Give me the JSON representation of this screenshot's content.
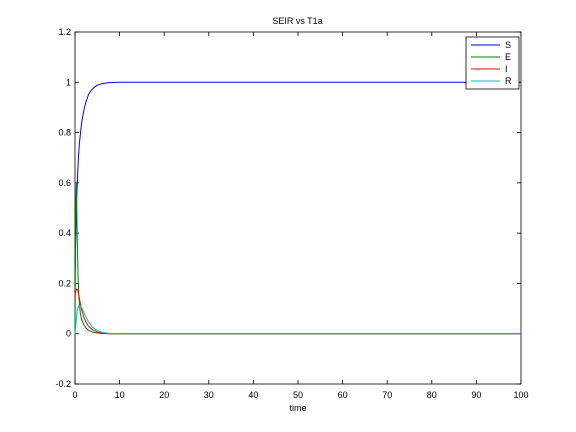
{
  "chart_data": {
    "type": "line",
    "title": "SEIR vs T1a",
    "xlabel": "time",
    "ylabel": "",
    "xlim": [
      0,
      100
    ],
    "ylim": [
      -0.2,
      1.2
    ],
    "xticks": [
      0,
      10,
      20,
      30,
      40,
      50,
      60,
      70,
      80,
      90,
      100
    ],
    "yticks": [
      -0.2,
      0,
      0.2,
      0.4,
      0.6,
      0.8,
      1,
      1.2
    ],
    "xtick_labels": [
      "0",
      "10",
      "20",
      "30",
      "40",
      "50",
      "60",
      "70",
      "80",
      "90",
      "100"
    ],
    "ytick_labels": [
      "-0.2",
      "0",
      "0.2",
      "0.4",
      "0.6",
      "0.8",
      "1",
      "1.2"
    ],
    "grid": false,
    "legend_position": "top-right",
    "series": [
      {
        "name": "S",
        "color": "#0000ff",
        "x": [
          0,
          0.2,
          0.4,
          0.6,
          0.8,
          1,
          1.5,
          2,
          2.5,
          3,
          3.5,
          4,
          4.5,
          5,
          6,
          7,
          8,
          10,
          20,
          100
        ],
        "y": [
          0.25,
          0.42,
          0.55,
          0.64,
          0.71,
          0.76,
          0.84,
          0.89,
          0.925,
          0.95,
          0.965,
          0.975,
          0.983,
          0.988,
          0.994,
          0.997,
          0.999,
          1.0,
          1.0,
          1.0
        ]
      },
      {
        "name": "E",
        "color": "#008000",
        "x": [
          0,
          0.1,
          0.2,
          0.3,
          0.4,
          0.5,
          0.7,
          0.9,
          1.2,
          1.5,
          2,
          2.5,
          3,
          4,
          5,
          6,
          8,
          100
        ],
        "y": [
          0.0,
          0.3,
          0.52,
          0.6,
          0.5,
          0.38,
          0.22,
          0.14,
          0.08,
          0.055,
          0.035,
          0.022,
          0.014,
          0.006,
          0.003,
          0.001,
          0.0,
          0.0
        ]
      },
      {
        "name": "I",
        "color": "#ff0000",
        "x": [
          0,
          0.2,
          0.4,
          0.6,
          0.8,
          1,
          1.2,
          1.5,
          2,
          2.5,
          3,
          4,
          5,
          6,
          7,
          8,
          100
        ],
        "y": [
          0.15,
          0.17,
          0.178,
          0.175,
          0.16,
          0.14,
          0.12,
          0.095,
          0.065,
          0.045,
          0.03,
          0.015,
          0.007,
          0.003,
          0.001,
          0.0,
          0.0
        ]
      },
      {
        "name": "R",
        "color": "#00bfbf",
        "x": [
          0,
          0.2,
          0.4,
          0.6,
          0.8,
          1,
          1.3,
          1.6,
          2,
          2.5,
          3,
          4,
          5,
          6,
          7,
          8,
          10,
          100
        ],
        "y": [
          0.0,
          0.04,
          0.08,
          0.1,
          0.11,
          0.112,
          0.11,
          0.1,
          0.085,
          0.065,
          0.048,
          0.025,
          0.012,
          0.006,
          0.003,
          0.001,
          0.0,
          0.0
        ]
      }
    ]
  }
}
